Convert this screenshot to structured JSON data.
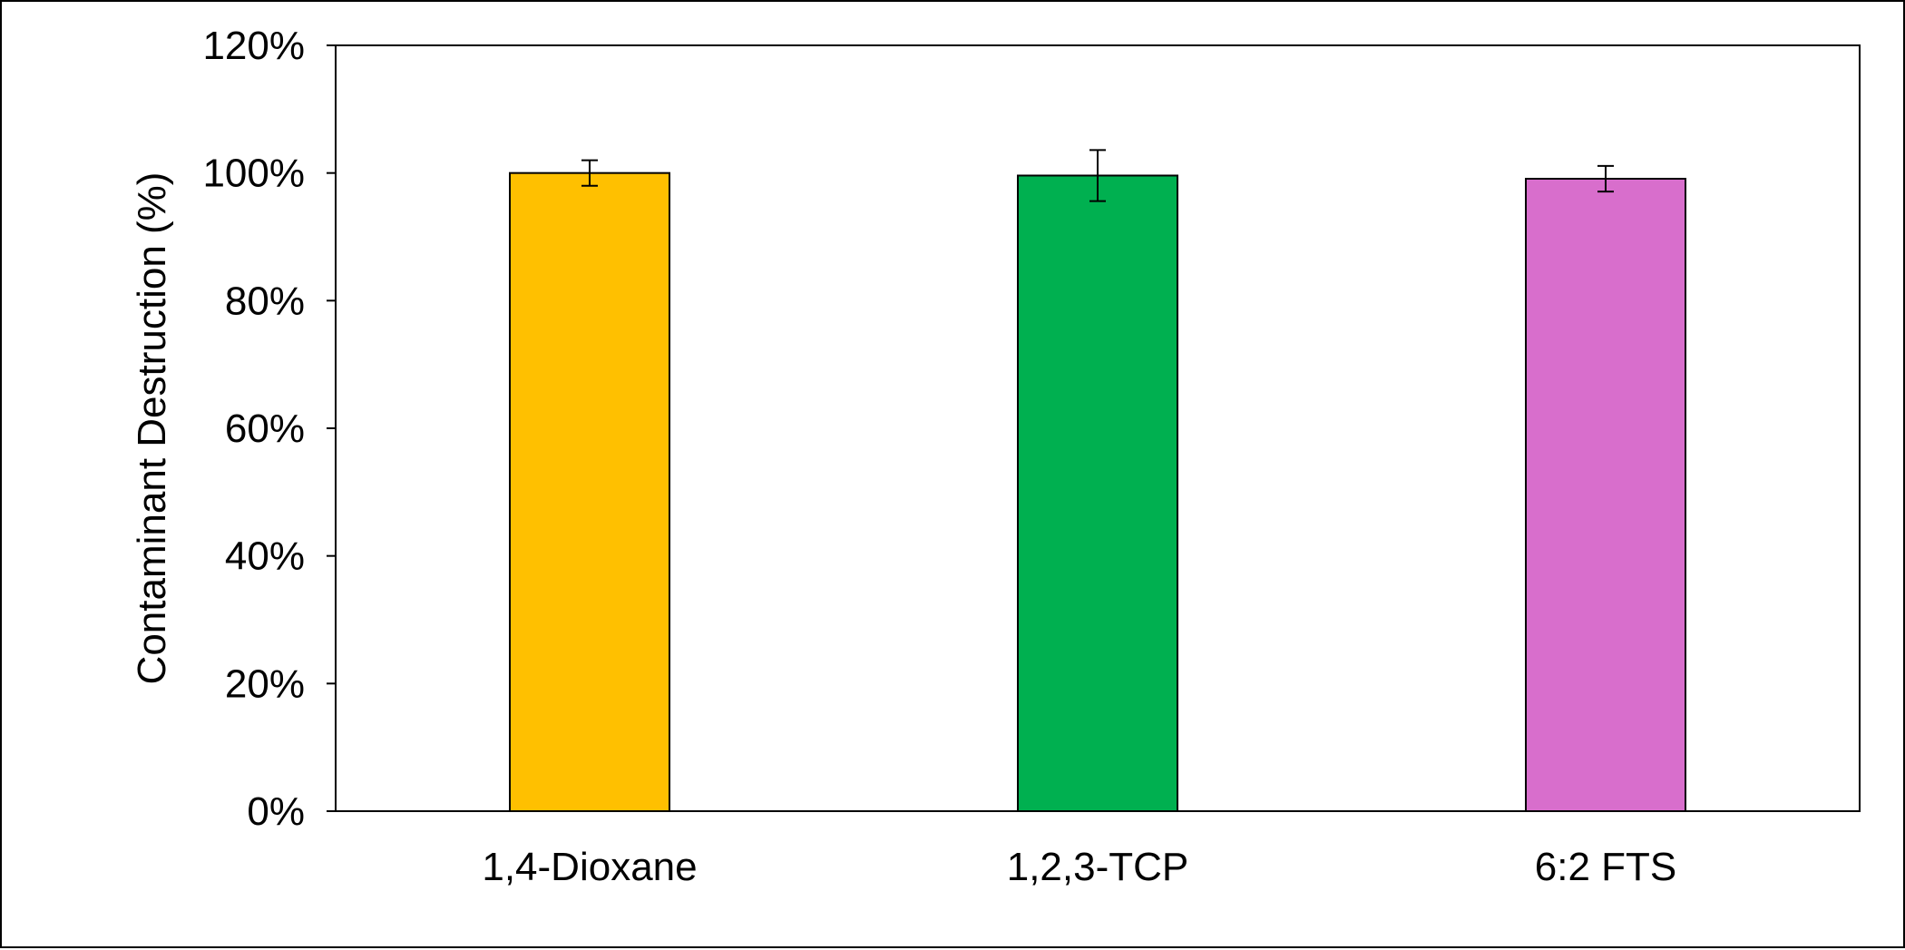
{
  "chart_data": {
    "type": "bar",
    "categories": [
      "1,4-Dioxane",
      "1,2,3-TCP",
      "6:2 FTS"
    ],
    "values": [
      100,
      99.6,
      99.1
    ],
    "errors": [
      2.0,
      4.0,
      2.0
    ],
    "colors": [
      "#FFC000",
      "#00B050",
      "#D86ECC"
    ],
    "ylabel": "Contaminant Destruction (%)",
    "xlabel": "",
    "ylim": [
      0,
      120
    ],
    "yticks": [
      0,
      20,
      40,
      60,
      80,
      100,
      120
    ],
    "ytick_labels": [
      "0%",
      "20%",
      "40%",
      "60%",
      "80%",
      "100%",
      "120%"
    ],
    "grid": false,
    "legend": "none"
  }
}
